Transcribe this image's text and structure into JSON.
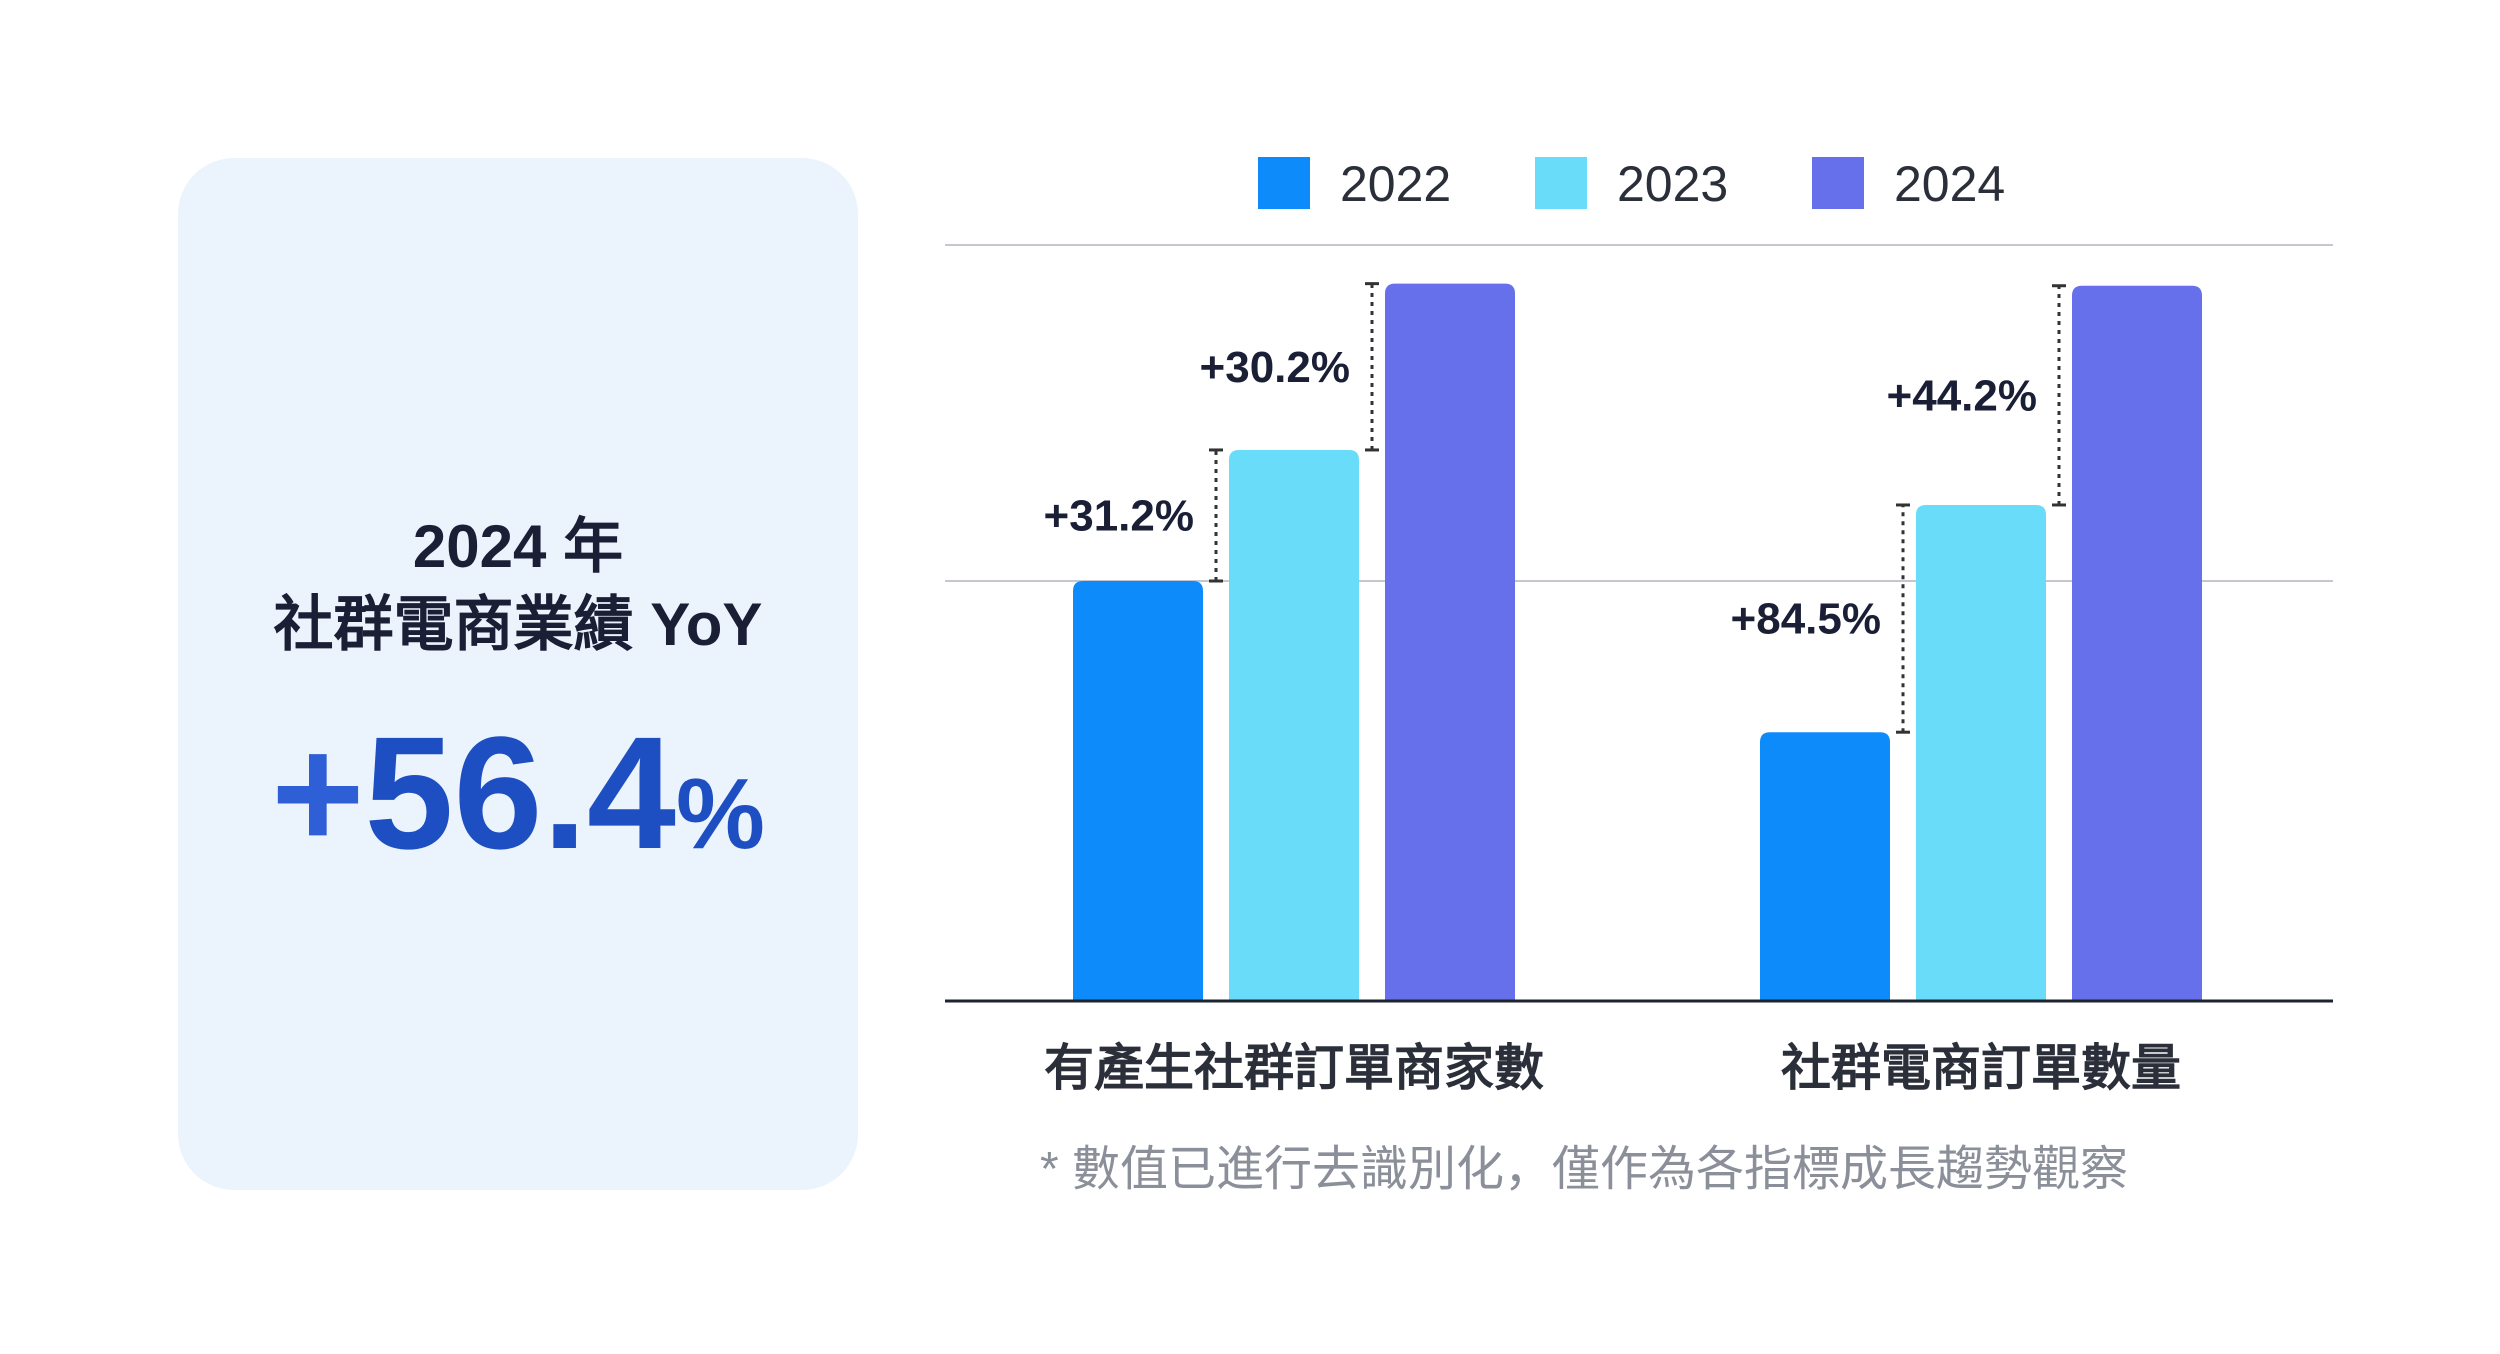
{
  "kpi": {
    "line1": "2024 年",
    "line2": "社群電商業績 YoY",
    "value_sign": "+",
    "value_number": "56.4",
    "value_unit": "%"
  },
  "chart_data": {
    "type": "bar",
    "categories": [
      "有產生社群訂單商家數",
      "社群電商訂單數量"
    ],
    "series": [
      {
        "name": "2022",
        "color": "#0d8bfa",
        "values": [
          100,
          64
        ]
      },
      {
        "name": "2023",
        "color": "#68dcf8",
        "values": [
          131.2,
          118.1
        ]
      },
      {
        "name": "2024",
        "color": "#6670ea",
        "values": [
          170.8,
          170.3
        ]
      }
    ],
    "annotations": [
      {
        "category": 0,
        "from_series": 0,
        "to_series": 1,
        "label": "+31.2%"
      },
      {
        "category": 0,
        "from_series": 1,
        "to_series": 2,
        "label": "+30.2%"
      },
      {
        "category": 1,
        "from_series": 0,
        "to_series": 1,
        "label": "+84.5%"
      },
      {
        "category": 1,
        "from_series": 1,
        "to_series": 2,
        "label": "+44.2%"
      }
    ],
    "gridlines": [
      100,
      180
    ],
    "ylim": [
      0,
      180
    ],
    "legend": "top",
    "footnote": "* 數值已進行去識別化，僅作為各指標成長趨勢觀察"
  }
}
